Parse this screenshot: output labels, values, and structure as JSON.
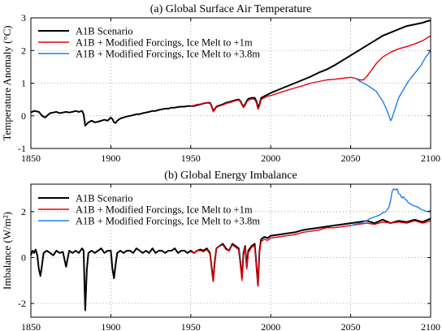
{
  "chart_data": [
    {
      "type": "line",
      "title": "(a) Global Surface Air Temperature",
      "xlabel": "",
      "ylabel": "Temperature Anomaly (°C)",
      "xlim": [
        1850,
        2100
      ],
      "ylim": [
        -1,
        3
      ],
      "xticks": [
        "1850",
        "1900",
        "1950",
        "2000",
        "2050",
        "2100"
      ],
      "yticks": [
        "-1",
        "0",
        "1",
        "2",
        "3"
      ],
      "grid": "dotted",
      "legend_position": "top-left",
      "series": [
        {
          "name": "A1B Scenario",
          "color": "#000000",
          "x": [
            1850,
            1852,
            1855,
            1857,
            1859,
            1860,
            1862,
            1864,
            1866,
            1868,
            1870,
            1872,
            1874,
            1876,
            1878,
            1880,
            1882,
            1883,
            1884,
            1885,
            1886,
            1888,
            1890,
            1892,
            1894,
            1896,
            1898,
            1900,
            1901,
            1902,
            1903,
            1904,
            1906,
            1908,
            1910,
            1912,
            1914,
            1916,
            1918,
            1920,
            1922,
            1924,
            1926,
            1928,
            1930,
            1932,
            1934,
            1936,
            1938,
            1940,
            1942,
            1944,
            1946,
            1948,
            1950,
            1952,
            1954,
            1956,
            1958,
            1960,
            1962,
            1963,
            1964,
            1965,
            1966,
            1968,
            1970,
            1972,
            1974,
            1976,
            1978,
            1980,
            1981,
            1982,
            1983,
            1984,
            1985,
            1986,
            1988,
            1990,
            1991,
            1992,
            1993,
            1994,
            1996,
            1998,
            2000,
            2005,
            2010,
            2015,
            2020,
            2025,
            2030,
            2035,
            2040,
            2045,
            2050,
            2055,
            2060,
            2065,
            2070,
            2075,
            2080,
            2085,
            2090,
            2095,
            2098,
            2100
          ],
          "y": [
            0.1,
            0.15,
            0.12,
            0.0,
            -0.05,
            0.0,
            0.08,
            0.1,
            0.12,
            0.08,
            0.1,
            0.12,
            0.1,
            0.12,
            0.15,
            0.12,
            0.15,
            0.05,
            -0.3,
            -0.25,
            -0.2,
            -0.15,
            -0.2,
            -0.18,
            -0.15,
            -0.12,
            -0.15,
            -0.05,
            -0.1,
            -0.2,
            -0.22,
            -0.15,
            -0.08,
            -0.05,
            -0.02,
            0.0,
            0.02,
            0.05,
            0.05,
            0.08,
            0.1,
            0.12,
            0.15,
            0.15,
            0.18,
            0.2,
            0.22,
            0.22,
            0.25,
            0.25,
            0.27,
            0.28,
            0.28,
            0.3,
            0.3,
            0.3,
            0.33,
            0.35,
            0.38,
            0.4,
            0.4,
            0.3,
            0.15,
            0.2,
            0.28,
            0.32,
            0.35,
            0.4,
            0.42,
            0.45,
            0.48,
            0.5,
            0.45,
            0.35,
            0.28,
            0.35,
            0.45,
            0.52,
            0.55,
            0.55,
            0.45,
            0.25,
            0.35,
            0.55,
            0.6,
            0.65,
            0.7,
            0.8,
            0.9,
            1.0,
            1.1,
            1.2,
            1.32,
            1.42,
            1.55,
            1.7,
            1.85,
            2.0,
            2.15,
            2.3,
            2.45,
            2.55,
            2.65,
            2.75,
            2.8,
            2.85,
            2.9,
            2.92
          ]
        },
        {
          "name": "A1B + Modified Forcings, Ice Melt to +1m",
          "color": "#e8000b",
          "x": [
            1950,
            1952,
            1954,
            1956,
            1958,
            1960,
            1962,
            1963,
            1964,
            1965,
            1966,
            1968,
            1970,
            1972,
            1974,
            1976,
            1978,
            1980,
            1981,
            1982,
            1983,
            1984,
            1985,
            1986,
            1988,
            1990,
            1991,
            1992,
            1993,
            1994,
            1996,
            1998,
            2000,
            2005,
            2010,
            2015,
            2020,
            2025,
            2030,
            2035,
            2040,
            2045,
            2050,
            2053,
            2056,
            2058,
            2060,
            2063,
            2066,
            2070,
            2075,
            2080,
            2085,
            2090,
            2095,
            2100
          ],
          "y": [
            0.3,
            0.32,
            0.35,
            0.36,
            0.38,
            0.4,
            0.38,
            0.28,
            0.12,
            0.18,
            0.26,
            0.3,
            0.33,
            0.38,
            0.4,
            0.43,
            0.46,
            0.48,
            0.43,
            0.33,
            0.25,
            0.32,
            0.42,
            0.48,
            0.52,
            0.5,
            0.4,
            0.2,
            0.3,
            0.5,
            0.55,
            0.6,
            0.62,
            0.7,
            0.78,
            0.85,
            0.92,
            1.0,
            1.05,
            1.1,
            1.12,
            1.15,
            1.18,
            1.15,
            1.1,
            1.1,
            1.2,
            1.4,
            1.6,
            1.8,
            1.95,
            2.05,
            2.12,
            2.2,
            2.3,
            2.45
          ]
        },
        {
          "name": "A1B + Modified Forcings, Ice Melt to +3.8m",
          "color": "#1f7ee8",
          "x": [
            2053,
            2056,
            2060,
            2063,
            2066,
            2068,
            2070,
            2072,
            2074,
            2075,
            2076,
            2078,
            2080,
            2083,
            2086,
            2090,
            2094,
            2097,
            2100
          ],
          "y": [
            1.15,
            1.05,
            0.95,
            0.85,
            0.75,
            0.6,
            0.45,
            0.25,
            0.0,
            -0.15,
            -0.05,
            0.25,
            0.55,
            0.8,
            1.05,
            1.3,
            1.55,
            1.8,
            2.0
          ]
        }
      ]
    },
    {
      "type": "line",
      "title": "(b) Global Energy Imbalance",
      "xlabel": "",
      "ylabel": "Imbalance (W/m2)",
      "xlim": [
        1850,
        2100
      ],
      "ylim": [
        -2.6,
        3.2
      ],
      "xticks": [
        "1850",
        "1900",
        "1950",
        "2000",
        "2050",
        "2100"
      ],
      "yticks": [
        "-2",
        "0",
        "2"
      ],
      "grid": "dotted",
      "legend_position": "top-left",
      "series": [
        {
          "name": "A1B Scenario",
          "color": "#000000",
          "x": [
            1850,
            1851,
            1852,
            1853,
            1854,
            1855,
            1856,
            1857,
            1858,
            1860,
            1862,
            1864,
            1866,
            1868,
            1870,
            1872,
            1874,
            1876,
            1878,
            1880,
            1882,
            1883,
            1884,
            1885,
            1886,
            1888,
            1890,
            1892,
            1894,
            1896,
            1898,
            1900,
            1901,
            1902,
            1903,
            1904,
            1906,
            1908,
            1910,
            1912,
            1914,
            1916,
            1918,
            1920,
            1922,
            1924,
            1926,
            1928,
            1930,
            1932,
            1934,
            1936,
            1938,
            1940,
            1942,
            1944,
            1946,
            1948,
            1950,
            1952,
            1954,
            1956,
            1958,
            1960,
            1962,
            1963,
            1964,
            1965,
            1966,
            1968,
            1970,
            1972,
            1974,
            1976,
            1978,
            1980,
            1981,
            1982,
            1983,
            1984,
            1985,
            1986,
            1988,
            1990,
            1991,
            1992,
            1993,
            1994,
            1996,
            1998,
            2000,
            2005,
            2010,
            2015,
            2020,
            2025,
            2030,
            2035,
            2040,
            2045,
            2050,
            2055,
            2060,
            2065,
            2070,
            2075,
            2080,
            2085,
            2090,
            2095,
            2100
          ],
          "y": [
            0.1,
            0.3,
            0.2,
            0.35,
            0.1,
            -0.5,
            -0.8,
            -0.3,
            0.2,
            0.3,
            0.2,
            0.1,
            0.3,
            0.2,
            0.25,
            -0.4,
            0.3,
            0.2,
            0.3,
            0.2,
            0.4,
            0.3,
            -2.3,
            -0.5,
            0.2,
            0.3,
            0.2,
            0.3,
            0.4,
            0.2,
            0.3,
            0.3,
            -0.5,
            -0.9,
            -0.3,
            0.2,
            0.3,
            0.2,
            0.3,
            0.3,
            0.2,
            0.4,
            0.3,
            0.2,
            0.3,
            0.2,
            0.4,
            0.2,
            0.3,
            0.3,
            0.2,
            0.3,
            0.3,
            0.4,
            0.2,
            0.3,
            0.3,
            0.2,
            0.3,
            0.2,
            0.3,
            0.35,
            0.3,
            0.4,
            0.2,
            -0.4,
            -1.0,
            -0.2,
            0.4,
            0.5,
            0.6,
            0.4,
            0.3,
            0.6,
            0.5,
            0.4,
            -0.2,
            -0.9,
            0.2,
            0.5,
            -0.4,
            0.3,
            0.5,
            0.6,
            -0.3,
            -1.2,
            0.3,
            0.8,
            0.9,
            0.85,
            0.95,
            1.0,
            1.05,
            1.1,
            1.2,
            1.25,
            1.3,
            1.35,
            1.4,
            1.45,
            1.5,
            1.55,
            1.6,
            1.5,
            1.65,
            1.5,
            1.6,
            1.55,
            1.65,
            1.55,
            1.7
          ]
        },
        {
          "name": "A1B + Modified Forcings, Ice Melt to +1m",
          "color": "#e8000b",
          "x": [
            1950,
            1952,
            1954,
            1956,
            1958,
            1960,
            1962,
            1963,
            1964,
            1965,
            1966,
            1968,
            1970,
            1972,
            1974,
            1976,
            1978,
            1980,
            1981,
            1982,
            1983,
            1984,
            1985,
            1986,
            1988,
            1990,
            1991,
            1992,
            1993,
            1994,
            1996,
            1998,
            2000,
            2005,
            2010,
            2015,
            2020,
            2025,
            2030,
            2035,
            2040,
            2045,
            2050,
            2055,
            2060,
            2065,
            2070,
            2075,
            2080,
            2085,
            2090,
            2095,
            2100
          ],
          "y": [
            0.25,
            0.2,
            0.3,
            0.3,
            0.25,
            0.35,
            0.15,
            -0.4,
            -1.05,
            -0.3,
            0.4,
            0.5,
            0.55,
            0.35,
            0.3,
            0.55,
            0.45,
            0.35,
            -0.3,
            -1.0,
            0.1,
            0.45,
            -0.5,
            0.2,
            0.45,
            0.5,
            -0.4,
            -1.25,
            0.2,
            0.7,
            0.8,
            0.75,
            0.85,
            0.9,
            0.95,
            1.0,
            1.1,
            1.15,
            1.2,
            1.3,
            1.3,
            1.35,
            1.4,
            1.45,
            1.5,
            1.45,
            1.55,
            1.5,
            1.55,
            1.5,
            1.6,
            1.5,
            1.6
          ]
        },
        {
          "name": "A1B + Modified Forcings, Ice Melt to +3.8m",
          "color": "#1f7ee8",
          "x": [
            2050,
            2053,
            2056,
            2058,
            2060,
            2062,
            2064,
            2066,
            2068,
            2070,
            2072,
            2074,
            2075,
            2076,
            2077,
            2078,
            2079,
            2080,
            2081,
            2082,
            2083,
            2084,
            2085,
            2086,
            2088,
            2090,
            2092,
            2094,
            2096,
            2098,
            2100
          ],
          "y": [
            1.4,
            1.45,
            1.5,
            1.55,
            1.6,
            1.7,
            1.75,
            1.8,
            1.85,
            1.95,
            2.0,
            2.2,
            2.5,
            2.9,
            3.0,
            2.95,
            3.0,
            2.8,
            2.75,
            2.6,
            2.65,
            2.55,
            2.5,
            2.4,
            2.3,
            2.25,
            2.2,
            2.1,
            2.05,
            2.0,
            2.05
          ]
        }
      ]
    }
  ]
}
